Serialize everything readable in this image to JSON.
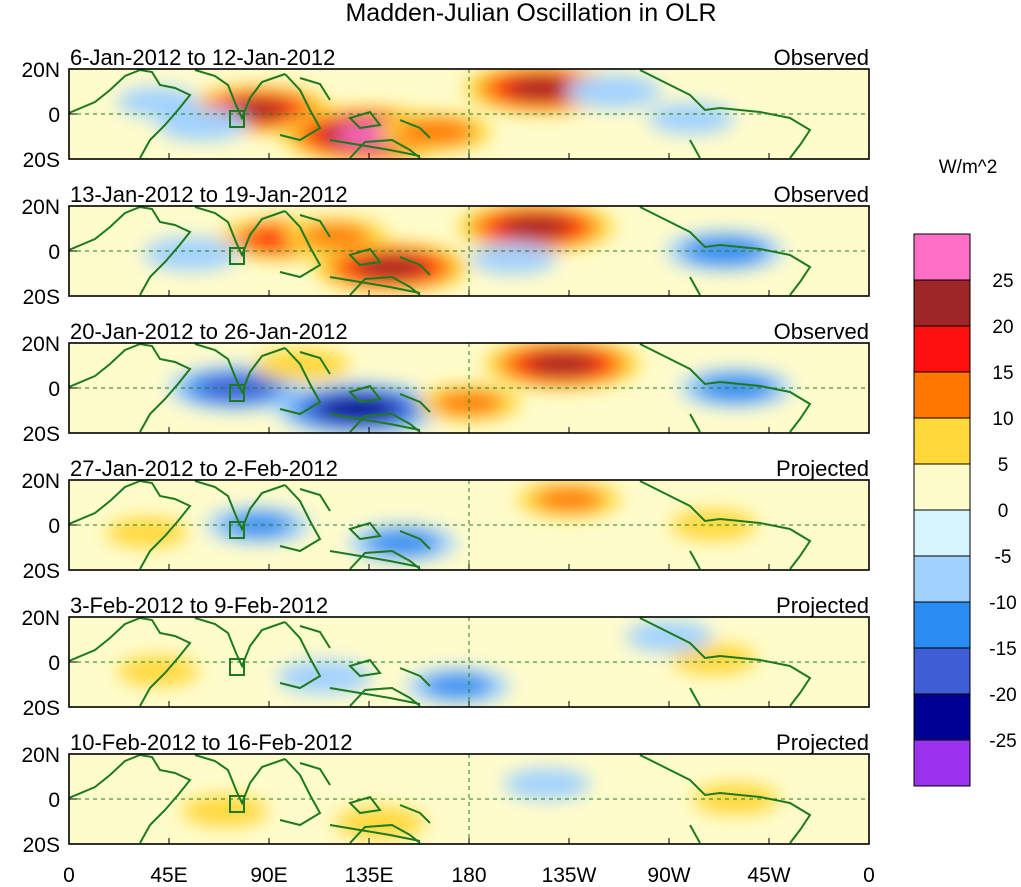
{
  "title": "Madden-Julian Oscillation in OLR",
  "units_label": "W/m^2",
  "lat_tick_labels": [
    "20N",
    "0",
    "20S"
  ],
  "lon_tick_labels": [
    "0",
    "45E",
    "90E",
    "135E",
    "180",
    "135W",
    "90W",
    "45W",
    "0"
  ],
  "panels": [
    {
      "date_range": "6-Jan-2012 to 12-Jan-2012",
      "status": "Observed"
    },
    {
      "date_range": "13-Jan-2012 to 19-Jan-2012",
      "status": "Observed"
    },
    {
      "date_range": "20-Jan-2012 to 26-Jan-2012",
      "status": "Observed"
    },
    {
      "date_range": "27-Jan-2012 to 2-Feb-2012",
      "status": "Projected"
    },
    {
      "date_range": "3-Feb-2012 to 9-Feb-2012",
      "status": "Projected"
    },
    {
      "date_range": "10-Feb-2012 to 16-Feb-2012",
      "status": "Projected"
    }
  ],
  "colorbar": {
    "labels": [
      "25",
      "20",
      "15",
      "10",
      "5",
      "0",
      "-5",
      "-10",
      "-15",
      "-20",
      "-25"
    ],
    "colors": [
      "#ff6ec7",
      "#9e2626",
      "#ff1010",
      "#ff7700",
      "#ffd83a",
      "#fffccc",
      "#d6f6ff",
      "#a0d2ff",
      "#2a8cf0",
      "#3f5ed6",
      "#000092",
      "#9a32ee"
    ]
  },
  "chart_data": {
    "type": "heatmap",
    "title": "Madden-Julian Oscillation in OLR",
    "variable": "OLR anomaly",
    "units": "W/m^2",
    "xlabel": "",
    "ylabel": "",
    "x_ticks": [
      "0",
      "45E",
      "90E",
      "135E",
      "180",
      "135W",
      "90W",
      "45W",
      "0"
    ],
    "y_ticks": [
      "20N",
      "0",
      "20S"
    ],
    "levels": [
      -25,
      -20,
      -15,
      -10,
      -5,
      0,
      5,
      10,
      15,
      20,
      25
    ],
    "panels": [
      {
        "label": "6-Jan-2012 to 12-Jan-2012",
        "status": "Observed",
        "anomalies": [
          {
            "lon": 85,
            "lat": 3,
            "value": 20
          },
          {
            "lon": 135,
            "lat": -14,
            "value": 27
          },
          {
            "lon": 165,
            "lat": -12,
            "value": 12
          },
          {
            "lon": 213,
            "lat": 17,
            "value": 22
          },
          {
            "lon": 60,
            "lat": -7,
            "value": -7
          },
          {
            "lon": 245,
            "lat": 15,
            "value": -8
          },
          {
            "lon": 280,
            "lat": -3,
            "value": -6
          },
          {
            "lon": 40,
            "lat": 8,
            "value": -5
          }
        ]
      },
      {
        "label": "13-Jan-2012 to 19-Jan-2012",
        "status": "Observed",
        "anomalies": [
          {
            "lon": 95,
            "lat": 8,
            "value": 15
          },
          {
            "lon": 145,
            "lat": -11,
            "value": 22
          },
          {
            "lon": 210,
            "lat": 16,
            "value": 22
          },
          {
            "lon": 120,
            "lat": 10,
            "value": 10
          },
          {
            "lon": 55,
            "lat": -2,
            "value": -8
          },
          {
            "lon": 295,
            "lat": 0,
            "value": -13
          },
          {
            "lon": 200,
            "lat": -5,
            "value": -6
          }
        ]
      },
      {
        "label": "20-Jan-2012 to 26-Jan-2012",
        "status": "Observed",
        "anomalies": [
          {
            "lon": 75,
            "lat": 0,
            "value": -17
          },
          {
            "lon": 130,
            "lat": -14,
            "value": -24
          },
          {
            "lon": 180,
            "lat": -10,
            "value": 10
          },
          {
            "lon": 222,
            "lat": 16,
            "value": 22
          },
          {
            "lon": 105,
            "lat": 15,
            "value": 8
          },
          {
            "lon": 300,
            "lat": 0,
            "value": -12
          }
        ]
      },
      {
        "label": "27-Jan-2012 to 2-Feb-2012",
        "status": "Projected",
        "anomalies": [
          {
            "lon": 85,
            "lat": 0,
            "value": -10
          },
          {
            "lon": 150,
            "lat": -12,
            "value": -11
          },
          {
            "lon": 225,
            "lat": 17,
            "value": 10
          },
          {
            "lon": 290,
            "lat": 0,
            "value": 6
          },
          {
            "lon": 35,
            "lat": -5,
            "value": 5
          }
        ]
      },
      {
        "label": "3-Feb-2012 to 9-Feb-2012",
        "status": "Projected",
        "anomalies": [
          {
            "lon": 115,
            "lat": -10,
            "value": -8
          },
          {
            "lon": 175,
            "lat": -16,
            "value": -10
          },
          {
            "lon": 40,
            "lat": -6,
            "value": 5
          },
          {
            "lon": 290,
            "lat": 2,
            "value": 6
          },
          {
            "lon": 270,
            "lat": 17,
            "value": -6
          }
        ]
      },
      {
        "label": "10-Feb-2012 to 16-Feb-2012",
        "status": "Projected",
        "anomalies": [
          {
            "lon": 70,
            "lat": -8,
            "value": 6
          },
          {
            "lon": 140,
            "lat": -16,
            "value": 7
          },
          {
            "lon": 300,
            "lat": 0,
            "value": 6
          },
          {
            "lon": 215,
            "lat": 10,
            "value": -6
          }
        ]
      }
    ]
  }
}
